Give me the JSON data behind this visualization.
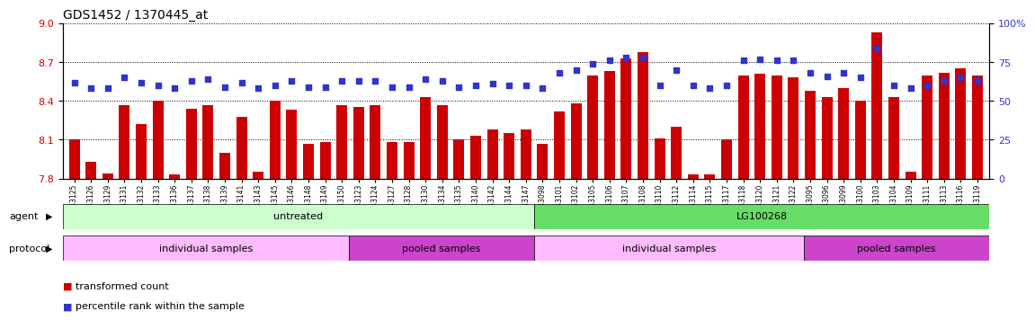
{
  "title": "GDS1452 / 1370445_at",
  "ylim_left": [
    7.8,
    9.0
  ],
  "ylim_right": [
    0,
    100
  ],
  "yticks_left": [
    7.8,
    8.1,
    8.4,
    8.7,
    9.0
  ],
  "yticks_right": [
    0,
    25,
    50,
    75,
    100
  ],
  "bar_color": "#cc0000",
  "dot_color": "#3333cc",
  "samples": [
    "GSM43125",
    "GSM43126",
    "GSM43129",
    "GSM43131",
    "GSM43132",
    "GSM43133",
    "GSM43136",
    "GSM43137",
    "GSM43138",
    "GSM43139",
    "GSM43141",
    "GSM43143",
    "GSM43145",
    "GSM43146",
    "GSM43148",
    "GSM43149",
    "GSM43150",
    "GSM43123",
    "GSM43124",
    "GSM43127",
    "GSM43128",
    "GSM43130",
    "GSM43134",
    "GSM43135",
    "GSM43140",
    "GSM43142",
    "GSM43144",
    "GSM43147",
    "GSM43098",
    "GSM43101",
    "GSM43102",
    "GSM43105",
    "GSM43106",
    "GSM43107",
    "GSM43108",
    "GSM43110",
    "GSM43112",
    "GSM43114",
    "GSM43115",
    "GSM43117",
    "GSM43118",
    "GSM43120",
    "GSM43121",
    "GSM43122",
    "GSM43095",
    "GSM43096",
    "GSM43099",
    "GSM43100",
    "GSM43103",
    "GSM43104",
    "GSM43109",
    "GSM43111",
    "GSM43113",
    "GSM43116",
    "GSM43119"
  ],
  "bar_values": [
    8.1,
    7.93,
    7.84,
    8.37,
    8.22,
    8.4,
    7.83,
    8.34,
    8.37,
    8.0,
    8.28,
    7.85,
    8.4,
    8.33,
    8.07,
    8.08,
    8.37,
    8.35,
    8.37,
    8.08,
    8.08,
    8.43,
    8.37,
    8.1,
    8.13,
    8.18,
    8.15,
    8.18,
    8.07,
    8.32,
    8.38,
    8.6,
    8.63,
    8.73,
    8.78,
    8.11,
    8.2,
    7.83,
    7.83,
    8.1,
    8.6,
    8.61,
    8.6,
    8.58,
    8.48,
    8.43,
    8.5,
    8.4,
    8.93,
    8.43,
    7.85,
    8.6,
    8.62,
    8.65,
    8.6
  ],
  "dot_values": [
    62,
    58,
    58,
    65,
    62,
    60,
    58,
    63,
    64,
    59,
    62,
    58,
    60,
    63,
    59,
    59,
    63,
    63,
    63,
    59,
    59,
    64,
    63,
    59,
    60,
    61,
    60,
    60,
    58,
    68,
    70,
    74,
    76,
    78,
    78,
    60,
    70,
    60,
    58,
    60,
    76,
    77,
    76,
    76,
    68,
    66,
    68,
    65,
    84,
    60,
    58,
    60,
    63,
    65,
    63
  ],
  "agent_groups": [
    {
      "label": "untreated",
      "start": 0,
      "end": 27,
      "color": "#ccffcc"
    },
    {
      "label": "LG100268",
      "start": 28,
      "end": 54,
      "color": "#66dd66"
    }
  ],
  "protocol_groups": [
    {
      "label": "individual samples",
      "start": 0,
      "end": 16,
      "color": "#ffbbff"
    },
    {
      "label": "pooled samples",
      "start": 17,
      "end": 27,
      "color": "#cc44cc"
    },
    {
      "label": "individual samples",
      "start": 28,
      "end": 43,
      "color": "#ffbbff"
    },
    {
      "label": "pooled samples",
      "start": 44,
      "end": 54,
      "color": "#cc44cc"
    }
  ],
  "legend_bar_label": "transformed count",
  "legend_dot_label": "percentile rank within the sample",
  "agent_label": "agent",
  "protocol_label": "protocol"
}
